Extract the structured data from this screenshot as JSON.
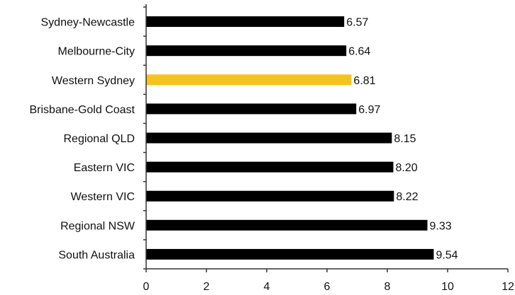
{
  "chart_data": {
    "type": "bar",
    "orientation": "horizontal",
    "categories": [
      "Sydney-Newcastle",
      "Melbourne-City",
      "Western Sydney",
      "Brisbane-Gold Coast",
      "Regional QLD",
      "Eastern VIC",
      "Western VIC",
      "Regional NSW",
      "South Australia"
    ],
    "values": [
      6.57,
      6.64,
      6.81,
      6.97,
      8.15,
      8.2,
      8.22,
      9.33,
      9.54
    ],
    "value_labels": [
      "6.57",
      "6.64",
      "6.81",
      "6.97",
      "8.15",
      "8.20",
      "8.22",
      "9.33",
      "9.54"
    ],
    "highlight_category": "Western Sydney",
    "colors": {
      "default": "#000000",
      "highlight": "#f7c21a"
    },
    "xlim": [
      0,
      12
    ],
    "xticks": [
      0,
      2,
      4,
      6,
      8,
      10,
      12
    ],
    "title": "",
    "xlabel": "",
    "ylabel": "",
    "grid": false
  }
}
